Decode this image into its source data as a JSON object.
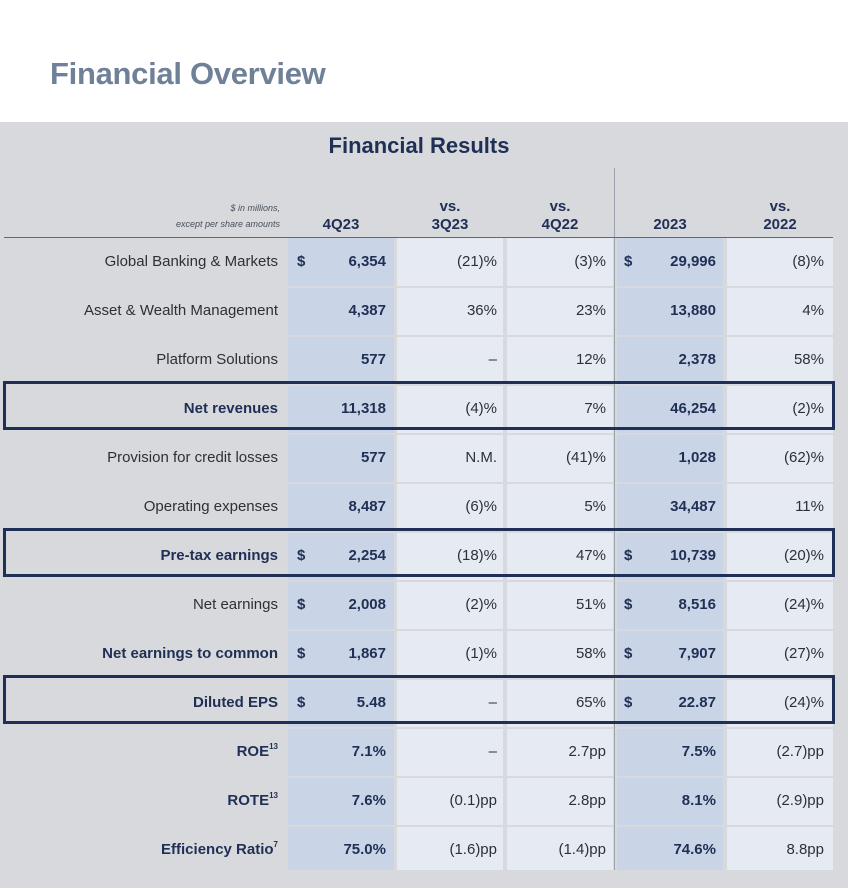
{
  "page": {
    "title": "Financial Overview",
    "subtitle": "Financial Results"
  },
  "table": {
    "unit_note_line1": "$ in millions,",
    "unit_note_line2": "except per share amounts",
    "headers": {
      "q4_23": "4Q23",
      "vs_3q23_top": "vs.",
      "vs_3q23_bottom": "3Q23",
      "vs_4q22_top": "vs.",
      "vs_4q22_bottom": "4Q22",
      "fy23": "2023",
      "vs_2022_top": "vs.",
      "vs_2022_bottom": "2022"
    },
    "rows": [
      {
        "label": "Global Banking & Markets",
        "sup": "",
        "bold": false,
        "d1": "$",
        "q4_23": "6,354",
        "vs_3q23": "(21)%",
        "vs_4q22": "(3)%",
        "d2": "$",
        "fy23": "29,996",
        "vs_2022": "(8)%"
      },
      {
        "label": "Asset & Wealth Management",
        "sup": "",
        "bold": false,
        "d1": "",
        "q4_23": "4,387",
        "vs_3q23": "36%",
        "vs_4q22": "23%",
        "d2": "",
        "fy23": "13,880",
        "vs_2022": "4%"
      },
      {
        "label": "Platform Solutions",
        "sup": "",
        "bold": false,
        "d1": "",
        "q4_23": "577",
        "vs_3q23": "–",
        "vs_4q22": "12%",
        "d2": "",
        "fy23": "2,378",
        "vs_2022": "58%"
      },
      {
        "label": "Net revenues",
        "sup": "",
        "bold": true,
        "d1": "",
        "q4_23": "11,318",
        "vs_3q23": "(4)%",
        "vs_4q22": "7%",
        "d2": "",
        "fy23": "46,254",
        "vs_2022": "(2)%"
      },
      {
        "label": "Provision for credit losses",
        "sup": "",
        "bold": false,
        "d1": "",
        "q4_23": "577",
        "vs_3q23": "N.M.",
        "vs_4q22": "(41)%",
        "d2": "",
        "fy23": "1,028",
        "vs_2022": "(62)%"
      },
      {
        "label": "Operating expenses",
        "sup": "",
        "bold": false,
        "d1": "",
        "q4_23": "8,487",
        "vs_3q23": "(6)%",
        "vs_4q22": "5%",
        "d2": "",
        "fy23": "34,487",
        "vs_2022": "11%"
      },
      {
        "label": "Pre-tax earnings",
        "sup": "",
        "bold": true,
        "d1": "$",
        "q4_23": "2,254",
        "vs_3q23": "(18)%",
        "vs_4q22": "47%",
        "d2": "$",
        "fy23": "10,739",
        "vs_2022": "(20)%"
      },
      {
        "label": "Net earnings",
        "sup": "",
        "bold": false,
        "d1": "$",
        "q4_23": "2,008",
        "vs_3q23": "(2)%",
        "vs_4q22": "51%",
        "d2": "$",
        "fy23": "8,516",
        "vs_2022": "(24)%"
      },
      {
        "label": "Net earnings to common",
        "sup": "",
        "bold": true,
        "d1": "$",
        "q4_23": "1,867",
        "vs_3q23": "(1)%",
        "vs_4q22": "58%",
        "d2": "$",
        "fy23": "7,907",
        "vs_2022": "(27)%"
      },
      {
        "label": "Diluted EPS",
        "sup": "",
        "bold": true,
        "d1": "$",
        "q4_23": "5.48",
        "vs_3q23": "–",
        "vs_4q22": "65%",
        "d2": "$",
        "fy23": "22.87",
        "vs_2022": "(24)%"
      },
      {
        "label": "ROE",
        "sup": "13",
        "bold": true,
        "d1": "",
        "q4_23": "7.1%",
        "vs_3q23": "–",
        "vs_4q22": "2.7pp",
        "d2": "",
        "fy23": "7.5%",
        "vs_2022": "(2.7)pp"
      },
      {
        "label": "ROTE",
        "sup": "13",
        "bold": true,
        "d1": "",
        "q4_23": "7.6%",
        "vs_3q23": "(0.1)pp",
        "vs_4q22": "2.8pp",
        "d2": "",
        "fy23": "8.1%",
        "vs_2022": "(2.9)pp"
      },
      {
        "label": "Efficiency Ratio",
        "sup": "7",
        "bold": true,
        "d1": "",
        "q4_23": "75.0%",
        "vs_3q23": "(1.6)pp",
        "vs_4q22": "(1.4)pp",
        "d2": "",
        "fy23": "74.6%",
        "vs_2022": "8.8pp"
      }
    ]
  },
  "colors": {
    "title": "#6f8198",
    "navy": "#1f2f55",
    "panel_bg": "#d7d9dc",
    "dark_stripe": "#c9d5e6",
    "light_stripe": "#e6ebf3"
  }
}
